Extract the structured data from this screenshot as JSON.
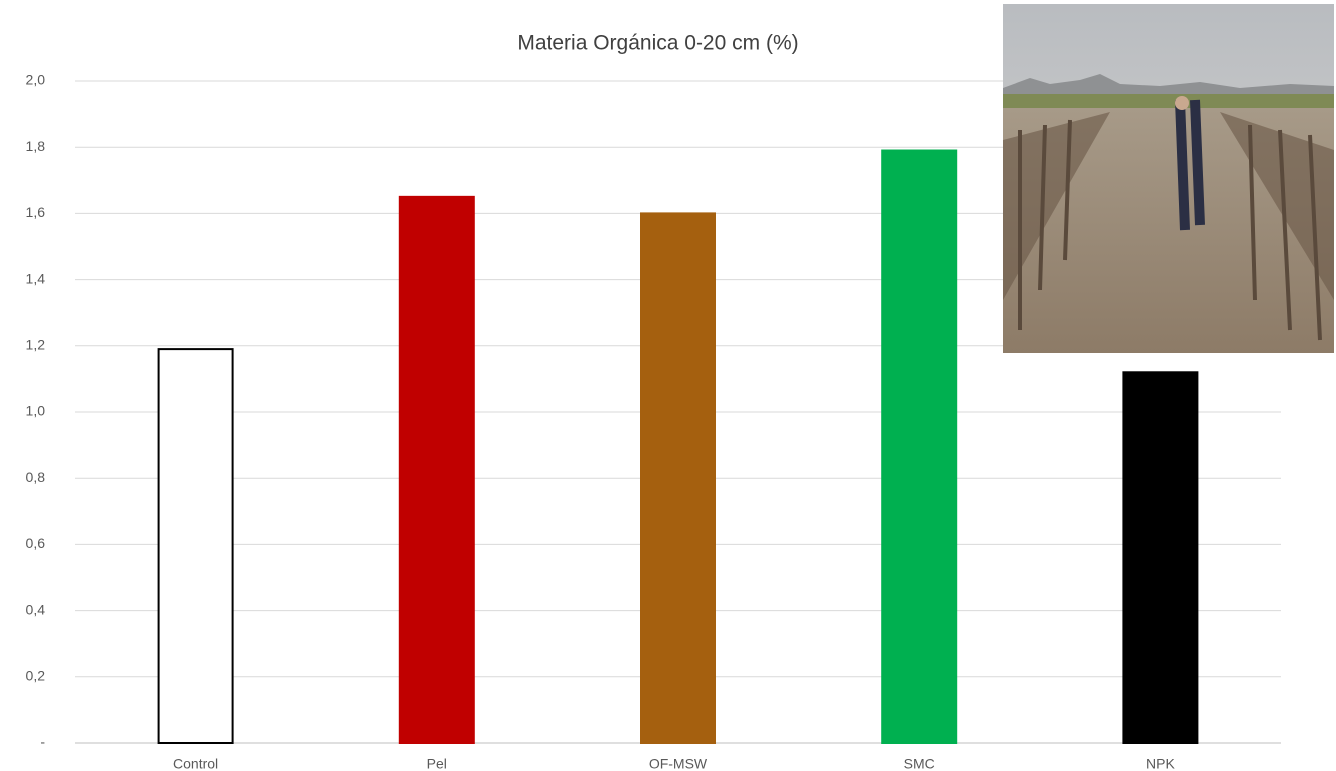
{
  "chart_data": {
    "type": "bar",
    "title": "Materia  Orgánica 0-20 cm  (%)",
    "categories": [
      "Control",
      "Pel",
      "OF-MSW",
      "SMC",
      "NPK"
    ],
    "values": [
      1.19,
      1.65,
      1.6,
      1.79,
      1.12
    ],
    "colors": [
      "#ffffff",
      "#c00000",
      "#a5600f",
      "#00b050",
      "#000000"
    ],
    "edgecolors": [
      "#000000",
      "#c00000",
      "#a5600f",
      "#00b050",
      "#000000"
    ],
    "ylim": [
      0,
      2
    ],
    "yticks": [
      {
        "value": 0,
        "label": "-"
      },
      {
        "value": 0.2,
        "label": "0,2"
      },
      {
        "value": 0.4,
        "label": "0,4"
      },
      {
        "value": 0.6,
        "label": "0,6"
      },
      {
        "value": 0.8,
        "label": "0,8"
      },
      {
        "value": 1,
        "label": "1,0"
      },
      {
        "value": 1.2,
        "label": "1,2"
      },
      {
        "value": 1.4,
        "label": "1,4"
      },
      {
        "value": 1.6,
        "label": "1,6"
      },
      {
        "value": 1.8,
        "label": "1,8"
      },
      {
        "value": 2,
        "label": "2,0"
      }
    ],
    "grid": true
  }
}
